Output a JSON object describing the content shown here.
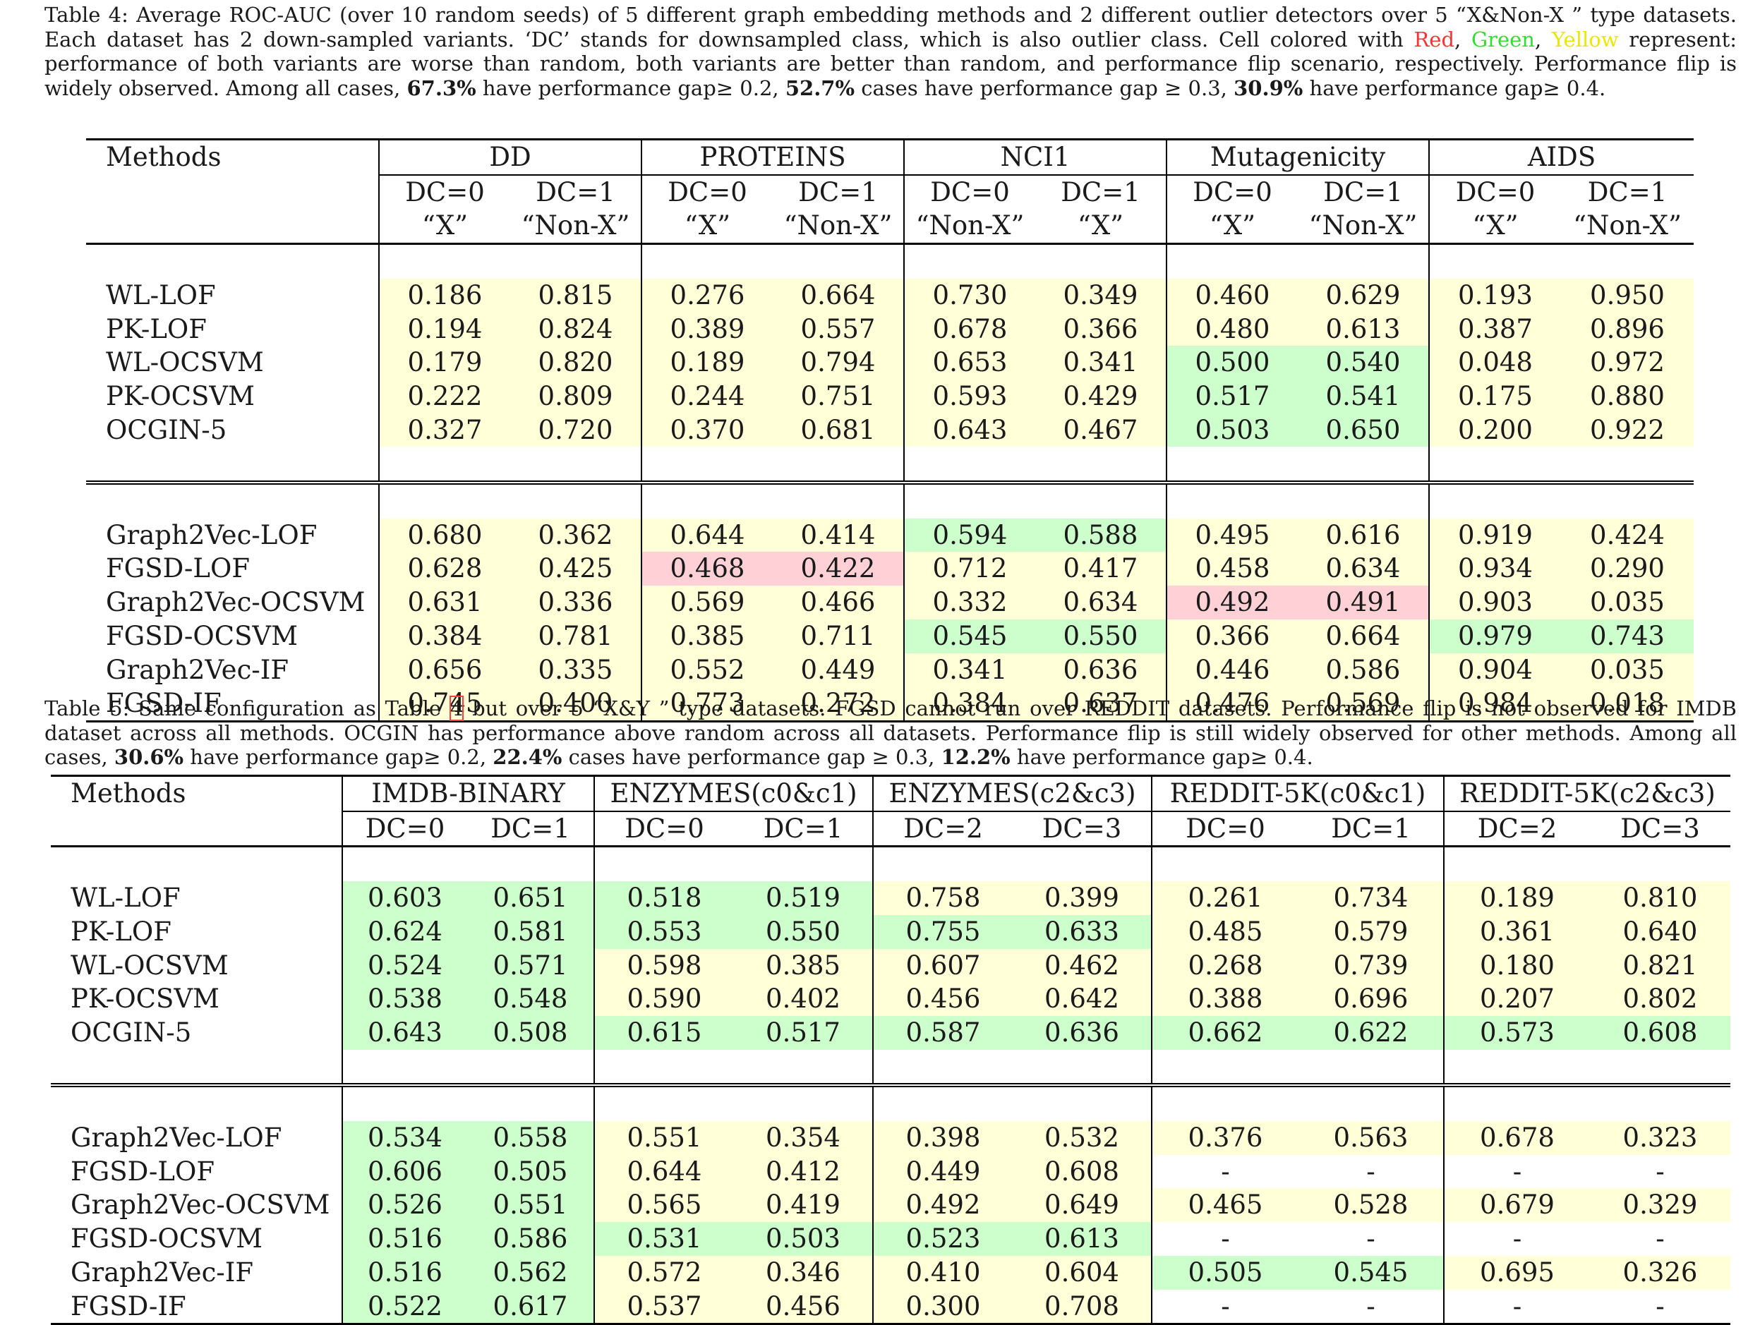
{
  "table4": {
    "caption": {
      "label": "Table 4:",
      "text_a": " Average ROC-AUC (over 10 random seeds) of 5 different graph embedding methods and 2 different outlier detectors over 5 “X&Non-X ” type datasets. Each dataset has 2 down-sampled variants. ‘DC’ stands for downsampled class, which is also outlier class. Cell colored with ",
      "red": "Red",
      "comma1": ", ",
      "green": "Green",
      "comma2": ", ",
      "yellow": "Yellow",
      "text_b": " represent: performance of both variants are worse than random, both variants are better than random, and performance flip scenario, respectively. Performance flip is widely observed. Among all cases, ",
      "p1": "67.3%",
      "t1": " have performance gap≥ 0.2, ",
      "p2": "52.7%",
      "t2": " cases have performance gap ≥ 0.3, ",
      "p3": "30.9%",
      "t3": " have performance gap≥ 0.4."
    },
    "methods_header": "Methods",
    "datasets": [
      {
        "name": "DD",
        "cols": [
          {
            "dc": "DC=0",
            "type": "“X”"
          },
          {
            "dc": "DC=1",
            "type": "“Non-X”"
          }
        ]
      },
      {
        "name": "PROTEINS",
        "cols": [
          {
            "dc": "DC=0",
            "type": "“X”"
          },
          {
            "dc": "DC=1",
            "type": "“Non-X”"
          }
        ]
      },
      {
        "name": "NCI1",
        "cols": [
          {
            "dc": "DC=0",
            "type": "“Non-X”"
          },
          {
            "dc": "DC=1",
            "type": "“X”"
          }
        ]
      },
      {
        "name": "Mutagenicity",
        "cols": [
          {
            "dc": "DC=0",
            "type": "“X”"
          },
          {
            "dc": "DC=1",
            "type": "“Non-X”"
          }
        ]
      },
      {
        "name": "AIDS",
        "cols": [
          {
            "dc": "DC=0",
            "type": "“X”"
          },
          {
            "dc": "DC=1",
            "type": "“Non-X”"
          }
        ]
      }
    ],
    "groups": [
      [
        {
          "method": "WL-LOF",
          "values": [
            "0.186",
            "0.815",
            "0.276",
            "0.664",
            "0.730",
            "0.349",
            "0.460",
            "0.629",
            "0.193",
            "0.950"
          ],
          "colors": [
            "y",
            "y",
            "y",
            "y",
            "y"
          ]
        },
        {
          "method": "PK-LOF",
          "values": [
            "0.194",
            "0.824",
            "0.389",
            "0.557",
            "0.678",
            "0.366",
            "0.480",
            "0.613",
            "0.387",
            "0.896"
          ],
          "colors": [
            "y",
            "y",
            "y",
            "y",
            "y"
          ]
        },
        {
          "method": "WL-OCSVM",
          "values": [
            "0.179",
            "0.820",
            "0.189",
            "0.794",
            "0.653",
            "0.341",
            "0.500",
            "0.540",
            "0.048",
            "0.972"
          ],
          "colors": [
            "y",
            "y",
            "y",
            "g",
            "y"
          ]
        },
        {
          "method": "PK-OCSVM",
          "values": [
            "0.222",
            "0.809",
            "0.244",
            "0.751",
            "0.593",
            "0.429",
            "0.517",
            "0.541",
            "0.175",
            "0.880"
          ],
          "colors": [
            "y",
            "y",
            "y",
            "g",
            "y"
          ]
        },
        {
          "method": "OCGIN-5",
          "values": [
            "0.327",
            "0.720",
            "0.370",
            "0.681",
            "0.643",
            "0.467",
            "0.503",
            "0.650",
            "0.200",
            "0.922"
          ],
          "colors": [
            "y",
            "y",
            "y",
            "g",
            "y"
          ]
        }
      ],
      [
        {
          "method": "Graph2Vec-LOF",
          "values": [
            "0.680",
            "0.362",
            "0.644",
            "0.414",
            "0.594",
            "0.588",
            "0.495",
            "0.616",
            "0.919",
            "0.424"
          ],
          "colors": [
            "y",
            "y",
            "g",
            "y",
            "y"
          ]
        },
        {
          "method": "FGSD-LOF",
          "values": [
            "0.628",
            "0.425",
            "0.468",
            "0.422",
            "0.712",
            "0.417",
            "0.458",
            "0.634",
            "0.934",
            "0.290"
          ],
          "colors": [
            "y",
            "r",
            "y",
            "y",
            "y"
          ]
        },
        {
          "method": "Graph2Vec-OCSVM",
          "values": [
            "0.631",
            "0.336",
            "0.569",
            "0.466",
            "0.332",
            "0.634",
            "0.492",
            "0.491",
            "0.903",
            "0.035"
          ],
          "colors": [
            "y",
            "y",
            "y",
            "r",
            "y"
          ]
        },
        {
          "method": "FGSD-OCSVM",
          "values": [
            "0.384",
            "0.781",
            "0.385",
            "0.711",
            "0.545",
            "0.550",
            "0.366",
            "0.664",
            "0.979",
            "0.743"
          ],
          "colors": [
            "y",
            "y",
            "g",
            "y",
            "g"
          ]
        },
        {
          "method": "Graph2Vec-IF",
          "values": [
            "0.656",
            "0.335",
            "0.552",
            "0.449",
            "0.341",
            "0.636",
            "0.446",
            "0.586",
            "0.904",
            "0.035"
          ],
          "colors": [
            "y",
            "y",
            "y",
            "y",
            "y"
          ]
        },
        {
          "method": "FGSD-IF",
          "values": [
            "0.745",
            "0.400",
            "0.773",
            "0.272",
            "0.384",
            "0.637",
            "0.476",
            "0.569",
            "0.984",
            "0.018"
          ],
          "colors": [
            "y",
            "y",
            "y",
            "y",
            "y"
          ]
        }
      ]
    ]
  },
  "table5": {
    "caption": {
      "label": "Table 5:",
      "text_a": " Same configuration as Table ",
      "ref": "4",
      "text_b": " but over 5 “X&Y ” type datasets. FGSD cannot run over REDDIT datasets. Performance flip is not observed for IMDB dataset across all methods. OCGIN has performance above random across all datasets. Performance flip is still widely observed for other methods. Among all cases, ",
      "p1": "30.6%",
      "t1": " have performance gap≥ 0.2, ",
      "p2": "22.4%",
      "t2": " cases have performance gap ≥ 0.3, ",
      "p3": "12.2%",
      "t3": " have performance gap≥ 0.4."
    },
    "methods_header": "Methods",
    "datasets": [
      {
        "name": "IMDB-BINARY",
        "cols": [
          "DC=0",
          "DC=1"
        ]
      },
      {
        "name": "ENZYMES(c0&c1)",
        "cols": [
          "DC=0",
          "DC=1"
        ]
      },
      {
        "name": "ENZYMES(c2&c3)",
        "cols": [
          "DC=2",
          "DC=3"
        ]
      },
      {
        "name": "REDDIT-5K(c0&c1)",
        "cols": [
          "DC=0",
          "DC=1"
        ]
      },
      {
        "name": "REDDIT-5K(c2&c3)",
        "cols": [
          "DC=2",
          "DC=3"
        ]
      }
    ],
    "groups": [
      [
        {
          "method": "WL-LOF",
          "values": [
            "0.603",
            "0.651",
            "0.518",
            "0.519",
            "0.758",
            "0.399",
            "0.261",
            "0.734",
            "0.189",
            "0.810"
          ],
          "colors": [
            "g",
            "g",
            "y",
            "y",
            "y"
          ]
        },
        {
          "method": "PK-LOF",
          "values": [
            "0.624",
            "0.581",
            "0.553",
            "0.550",
            "0.755",
            "0.633",
            "0.485",
            "0.579",
            "0.361",
            "0.640"
          ],
          "colors": [
            "g",
            "g",
            "g",
            "y",
            "y"
          ]
        },
        {
          "method": "WL-OCSVM",
          "values": [
            "0.524",
            "0.571",
            "0.598",
            "0.385",
            "0.607",
            "0.462",
            "0.268",
            "0.739",
            "0.180",
            "0.821"
          ],
          "colors": [
            "g",
            "y",
            "y",
            "y",
            "y"
          ]
        },
        {
          "method": "PK-OCSVM",
          "values": [
            "0.538",
            "0.548",
            "0.590",
            "0.402",
            "0.456",
            "0.642",
            "0.388",
            "0.696",
            "0.207",
            "0.802"
          ],
          "colors": [
            "g",
            "y",
            "y",
            "y",
            "y"
          ]
        },
        {
          "method": "OCGIN-5",
          "values": [
            "0.643",
            "0.508",
            "0.615",
            "0.517",
            "0.587",
            "0.636",
            "0.662",
            "0.622",
            "0.573",
            "0.608"
          ],
          "colors": [
            "g",
            "g",
            "g",
            "g",
            "g"
          ]
        }
      ],
      [
        {
          "method": "Graph2Vec-LOF",
          "values": [
            "0.534",
            "0.558",
            "0.551",
            "0.354",
            "0.398",
            "0.532",
            "0.376",
            "0.563",
            "0.678",
            "0.323"
          ],
          "colors": [
            "g",
            "y",
            "y",
            "y",
            "y"
          ]
        },
        {
          "method": "FGSD-LOF",
          "values": [
            "0.606",
            "0.505",
            "0.644",
            "0.412",
            "0.449",
            "0.608",
            "-",
            "-",
            "-",
            "-"
          ],
          "colors": [
            "g",
            "y",
            "y",
            "w",
            "w"
          ]
        },
        {
          "method": "Graph2Vec-OCSVM",
          "values": [
            "0.526",
            "0.551",
            "0.565",
            "0.419",
            "0.492",
            "0.649",
            "0.465",
            "0.528",
            "0.679",
            "0.329"
          ],
          "colors": [
            "g",
            "y",
            "y",
            "y",
            "y"
          ]
        },
        {
          "method": "FGSD-OCSVM",
          "values": [
            "0.516",
            "0.586",
            "0.531",
            "0.503",
            "0.523",
            "0.613",
            "-",
            "-",
            "-",
            "-"
          ],
          "colors": [
            "g",
            "g",
            "g",
            "w",
            "w"
          ]
        },
        {
          "method": "Graph2Vec-IF",
          "values": [
            "0.516",
            "0.562",
            "0.572",
            "0.346",
            "0.410",
            "0.604",
            "0.505",
            "0.545",
            "0.695",
            "0.326"
          ],
          "colors": [
            "g",
            "y",
            "y",
            "g",
            "y"
          ]
        },
        {
          "method": "FGSD-IF",
          "values": [
            "0.522",
            "0.617",
            "0.537",
            "0.456",
            "0.300",
            "0.708",
            "-",
            "-",
            "-",
            "-"
          ],
          "colors": [
            "g",
            "y",
            "y",
            "w",
            "w"
          ]
        }
      ]
    ]
  }
}
